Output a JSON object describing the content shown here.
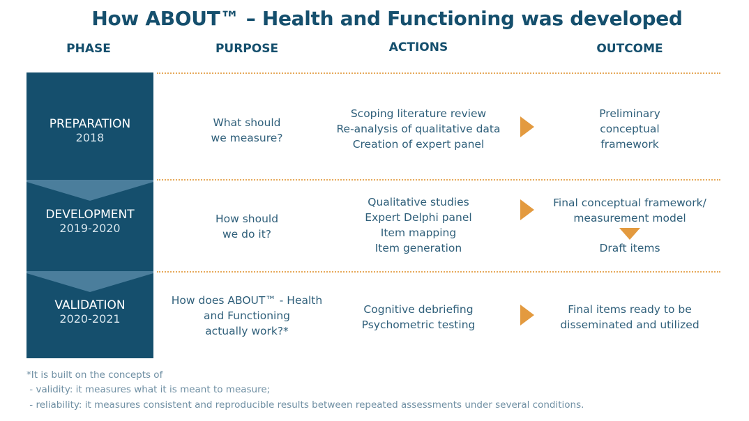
{
  "title": "How ABOUT™ – Health and Functioning was developed",
  "headers": {
    "phase": "PHASE",
    "purpose": "PURPOSE",
    "actions": "ACTIONS",
    "outcome": "OUTCOME"
  },
  "colors": {
    "phase_bg": "#154f6d",
    "chevron": "#4b7e9c",
    "accent": "#e39a3f"
  },
  "rows": [
    {
      "phase": "PREPARATION",
      "years": "2018",
      "purpose": [
        "What should",
        "we measure?"
      ],
      "actions": [
        "Scoping literature review",
        "Re-analysis of qualitative data",
        "Creation of expert panel"
      ],
      "outcome": [
        "Preliminary",
        "conceptual",
        "framework"
      ]
    },
    {
      "phase": "DEVELOPMENT",
      "years": "2019-2020",
      "purpose": [
        "How should",
        "we do it?"
      ],
      "actions": [
        "Qualitative studies",
        "Expert Delphi panel",
        "Item mapping",
        "Item generation"
      ],
      "outcome": [
        "Final conceptual framework/",
        "measurement model"
      ],
      "outcome_after": "Draft items"
    },
    {
      "phase": "VALIDATION",
      "years": "2020-2021",
      "purpose": [
        "How does ABOUT™ - Health",
        "and Functioning",
        "actually work?*"
      ],
      "actions": [
        "Cognitive debriefing",
        "Psychometric testing"
      ],
      "outcome": [
        "Final items ready to be",
        "disseminated and utilized"
      ]
    }
  ],
  "footnote": [
    "*It is built on the concepts of",
    " - validity: it measures what it is meant to measure;",
    " - reliability: it measures consistent and reproducible results between repeated assessments under several conditions."
  ]
}
